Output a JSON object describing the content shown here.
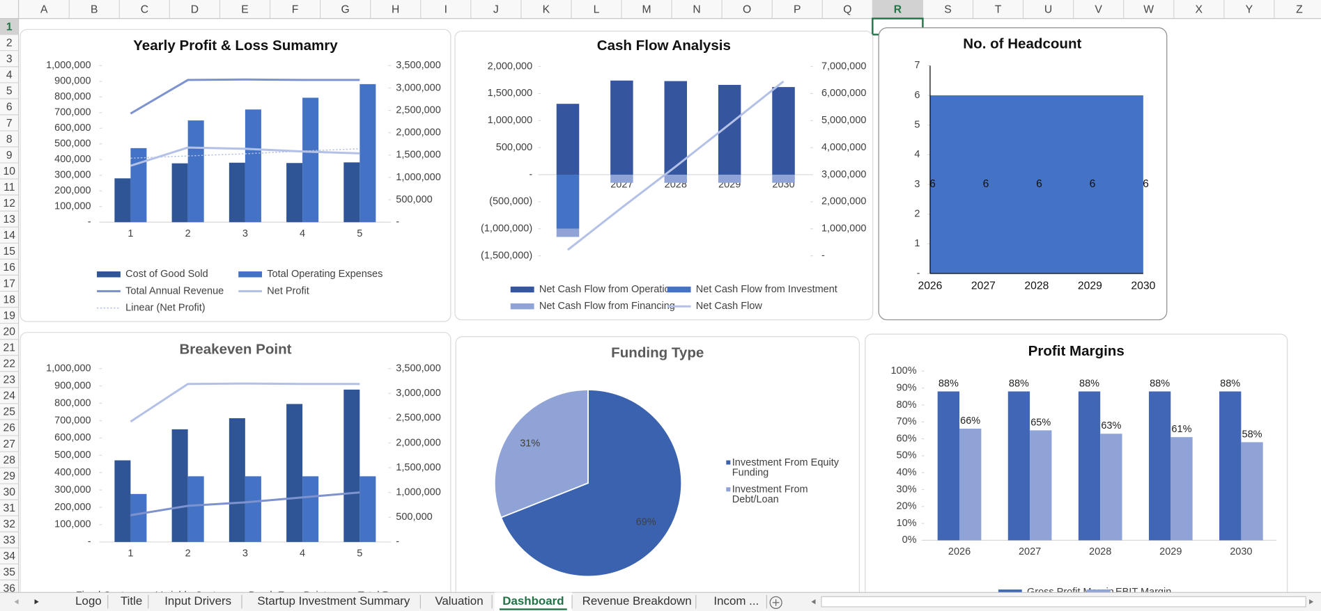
{
  "columns": [
    "A",
    "B",
    "C",
    "D",
    "E",
    "F",
    "G",
    "H",
    "I",
    "J",
    "K",
    "L",
    "M",
    "N",
    "O",
    "P",
    "Q",
    "R",
    "S",
    "T",
    "U",
    "V",
    "W",
    "X",
    "Y",
    "Z"
  ],
  "rows": [
    1,
    2,
    3,
    4,
    5,
    6,
    7,
    8,
    9,
    10,
    11,
    12,
    13,
    14,
    15,
    16,
    17,
    18,
    19,
    20,
    21,
    22,
    23,
    24,
    25,
    26,
    27,
    28,
    29,
    30,
    31,
    32,
    33,
    34,
    35,
    36
  ],
  "sheet_tabs": [
    "Logo",
    "Title",
    "Input Drivers",
    "Startup Investment Summary",
    "Valuation",
    "Dashboard",
    "Revenue Breakdown",
    "Incom ..."
  ],
  "active_tab": 5,
  "chart_data": [
    {
      "type": "bar",
      "title": "Yearly Profit & Loss Sumamry",
      "categories": [
        "1",
        "2",
        "3",
        "4",
        "5"
      ],
      "ylim": [
        0,
        1000000
      ],
      "yticks": [
        {
          "value": 0,
          "label": "-"
        },
        {
          "value": 100000,
          "label": "100,000"
        },
        {
          "value": 200000,
          "label": "200,000"
        },
        {
          "value": 300000,
          "label": "300,000"
        },
        {
          "value": 400000,
          "label": "400,000"
        },
        {
          "value": 500000,
          "label": "500,000"
        },
        {
          "value": 600000,
          "label": "600,000"
        },
        {
          "value": 700000,
          "label": "700,000"
        },
        {
          "value": 800000,
          "label": "800,000"
        },
        {
          "value": 900000,
          "label": "900,000"
        },
        {
          "value": 1000000,
          "label": "1,000,000"
        }
      ],
      "y2lim": [
        0,
        3500000
      ],
      "y2ticks": [
        {
          "value": 0,
          "label": "-"
        },
        {
          "value": 500000,
          "label": "500,000"
        },
        {
          "value": 1000000,
          "label": "1,000,000"
        },
        {
          "value": 1500000,
          "label": "1,500,000"
        },
        {
          "value": 2000000,
          "label": "2,000,000"
        },
        {
          "value": 2500000,
          "label": "2,500,000"
        },
        {
          "value": 3000000,
          "label": "3,000,000"
        },
        {
          "value": 3500000,
          "label": "3,500,000"
        }
      ],
      "series": [
        {
          "name": "Cost of Good Sold",
          "type": "bar",
          "color": "#2f5597",
          "values": [
            280000,
            376000,
            380000,
            378000,
            382000
          ]
        },
        {
          "name": "Total Operating Expenses",
          "type": "bar",
          "color": "#4472c4",
          "values": [
            473000,
            650000,
            720000,
            795000,
            882000
          ]
        },
        {
          "name": "Total Annual Revenue",
          "type": "line",
          "axis": "y2",
          "color": "#7d93cf",
          "values": [
            2430000,
            3180000,
            3190000,
            3180000,
            3180000
          ]
        },
        {
          "name": "Net Profit",
          "type": "line",
          "axis": "y2",
          "color": "#b4c1e6",
          "values": [
            1260000,
            1670000,
            1640000,
            1580000,
            1540000
          ]
        },
        {
          "name": "Linear (Net Profit)",
          "type": "line",
          "axis": "y2",
          "dash": true,
          "color": "#b4c1e6",
          "values": [
            1430000,
            1480000,
            1530000,
            1590000,
            1640000
          ]
        }
      ]
    },
    {
      "type": "bar",
      "title": "Cash Flow Analysis",
      "stacked": true,
      "categories": [
        "2026",
        "2027",
        "2028",
        "2029",
        "2030"
      ],
      "ylim": [
        -1500000,
        2000000
      ],
      "yticks": [
        {
          "value": -1500000,
          "label": "(1,500,000)"
        },
        {
          "value": -1000000,
          "label": "(1,000,000)"
        },
        {
          "value": -500000,
          "label": "(500,000)"
        },
        {
          "value": 0,
          "label": "-"
        },
        {
          "value": 500000,
          "label": "500,000"
        },
        {
          "value": 1000000,
          "label": "1,000,000"
        },
        {
          "value": 1500000,
          "label": "1,500,000"
        },
        {
          "value": 2000000,
          "label": "2,000,000"
        }
      ],
      "y2lim": [
        0,
        7000000
      ],
      "y2ticks": [
        {
          "value": 0,
          "label": "-"
        },
        {
          "value": 1000000,
          "label": "1,000,000"
        },
        {
          "value": 2000000,
          "label": "2,000,000"
        },
        {
          "value": 3000000,
          "label": "3,000,000"
        },
        {
          "value": 4000000,
          "label": "4,000,000"
        },
        {
          "value": 5000000,
          "label": "5,000,000"
        },
        {
          "value": 6000000,
          "label": "6,000,000"
        },
        {
          "value": 7000000,
          "label": "7,000,000"
        }
      ],
      "series": [
        {
          "name": "Net Cash Flow from Operations",
          "type": "bar",
          "color": "#35559f",
          "values": [
            1310000,
            1740000,
            1730000,
            1660000,
            1620000
          ]
        },
        {
          "name": "Net Cash Flow from Investment",
          "type": "bar",
          "color": "#4472c4",
          "values": [
            -1000000,
            0,
            0,
            0,
            0
          ]
        },
        {
          "name": "Net Cash Flow from Financing",
          "type": "bar",
          "color": "#8fa3d6",
          "values": [
            -150000,
            -150000,
            -150000,
            -150000,
            -150000
          ]
        },
        {
          "name": "Net Cash Flow",
          "type": "line",
          "axis": "y2",
          "color": "#b4c1e6",
          "values": [
            220000,
            1780000,
            3300000,
            4870000,
            6450000
          ]
        }
      ]
    },
    {
      "type": "area",
      "title": "No. of Headcount",
      "categories": [
        "2026",
        "2027",
        "2028",
        "2029",
        "2030"
      ],
      "ylim": [
        0,
        7
      ],
      "yticks": [
        {
          "value": 0,
          "label": "-"
        },
        1,
        2,
        3,
        4,
        5,
        6,
        7
      ],
      "series": [
        {
          "name": "Headcount",
          "color": "#4472c4",
          "data_labels": true,
          "values": [
            6,
            6,
            6,
            6,
            6
          ]
        }
      ]
    },
    {
      "type": "bar",
      "title": "Breakeven Point",
      "categories": [
        "1",
        "2",
        "3",
        "4",
        "5"
      ],
      "ylim": [
        0,
        1000000
      ],
      "yticks": [
        {
          "value": 0,
          "label": "-"
        },
        {
          "value": 100000,
          "label": "100,000"
        },
        {
          "value": 200000,
          "label": "200,000"
        },
        {
          "value": 300000,
          "label": "300,000"
        },
        {
          "value": 400000,
          "label": "400,000"
        },
        {
          "value": 500000,
          "label": "500,000"
        },
        {
          "value": 600000,
          "label": "600,000"
        },
        {
          "value": 700000,
          "label": "700,000"
        },
        {
          "value": 800000,
          "label": "800,000"
        },
        {
          "value": 900000,
          "label": "900,000"
        },
        {
          "value": 1000000,
          "label": "1,000,000"
        }
      ],
      "y2lim": [
        0,
        3500000
      ],
      "y2ticks": [
        {
          "value": 0,
          "label": "-"
        },
        {
          "value": 500000,
          "label": "500,000"
        },
        {
          "value": 1000000,
          "label": "1,000,000"
        },
        {
          "value": 1500000,
          "label": "1,500,000"
        },
        {
          "value": 2000000,
          "label": "2,000,000"
        },
        {
          "value": 2500000,
          "label": "2,500,000"
        },
        {
          "value": 3000000,
          "label": "3,000,000"
        },
        {
          "value": 3500000,
          "label": "3,500,000"
        }
      ],
      "series": [
        {
          "name": "Fixed Cost",
          "type": "bar",
          "color": "#2f5597",
          "values": [
            471000,
            650000,
            714000,
            796000,
            879000
          ]
        },
        {
          "name": "Variable Cost",
          "type": "bar",
          "color": "#4472c4",
          "values": [
            277000,
            379000,
            379000,
            379000,
            379000
          ]
        },
        {
          "name": "Break Even Point",
          "type": "line",
          "axis": "y2",
          "color": "#7d93cf",
          "values": [
            540000,
            730000,
            800000,
            900000,
            1000000
          ]
        },
        {
          "name": "Total Revenue",
          "type": "line",
          "axis": "y2",
          "color": "#b4c1e6",
          "values": [
            2430000,
            3190000,
            3200000,
            3190000,
            3190000
          ]
        }
      ]
    },
    {
      "type": "pie",
      "title": "Funding Type",
      "categories": [
        "Investment From Equity Funding",
        "Investment From Debt/Loan"
      ],
      "values": [
        69,
        31
      ],
      "value_labels": [
        "69%",
        "31%"
      ],
      "colors": [
        "#3a62ae",
        "#8fa3d6"
      ]
    },
    {
      "type": "bar",
      "title": "Profit Margins",
      "categories": [
        "2026",
        "2027",
        "2028",
        "2029",
        "2030"
      ],
      "ylim": [
        0,
        100
      ],
      "yticks": [
        {
          "value": 0,
          "label": "0%"
        },
        {
          "value": 10,
          "label": "10%"
        },
        {
          "value": 20,
          "label": "20%"
        },
        {
          "value": 30,
          "label": "30%"
        },
        {
          "value": 40,
          "label": "40%"
        },
        {
          "value": 50,
          "label": "50%"
        },
        {
          "value": 60,
          "label": "60%"
        },
        {
          "value": 70,
          "label": "70%"
        },
        {
          "value": 80,
          "label": "80%"
        },
        {
          "value": 90,
          "label": "90%"
        },
        {
          "value": 100,
          "label": "100%"
        }
      ],
      "series": [
        {
          "name": "Gross Profit Margin",
          "type": "bar",
          "color": "#4066b5",
          "values": [
            88,
            88,
            88,
            88,
            88
          ],
          "value_labels": [
            "88%",
            "88%",
            "88%",
            "88%",
            "88%"
          ]
        },
        {
          "name": "EBIT Margin",
          "type": "bar",
          "color": "#8fa3d6",
          "values": [
            66,
            65,
            63,
            61,
            58
          ],
          "value_labels": [
            "66%",
            "65%",
            "63%",
            "61%",
            "58%"
          ]
        }
      ]
    }
  ]
}
